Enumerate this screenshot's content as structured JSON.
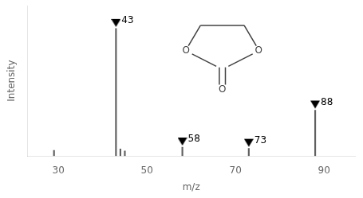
{
  "chart_data": {
    "type": "bar",
    "xlabel": "m/z",
    "ylabel": "Intensity",
    "xlim": [
      23,
      97
    ],
    "xticks": [
      30,
      50,
      70,
      90
    ],
    "ylim": [
      0,
      118
    ],
    "yticks": [],
    "tick_labels": "x",
    "grid": false,
    "annotations": [
      "O",
      "O",
      "O"
    ],
    "series": [
      {
        "type": "bar",
        "color": "#606060",
        "x": [
          29,
          43,
          44,
          45,
          58,
          73,
          88
        ],
        "values": [
          4.5,
          100.0,
          5.5,
          4.0,
          7.0,
          6.0,
          36.0
        ]
      },
      {
        "type": "scatter",
        "marker": "triangle-down",
        "color": "#000000",
        "x": [
          43,
          58,
          73,
          88
        ],
        "values": [
          100.0,
          7.0,
          6.0,
          36.0
        ],
        "labels": [
          "43",
          "58",
          "73",
          "88"
        ]
      }
    ]
  }
}
